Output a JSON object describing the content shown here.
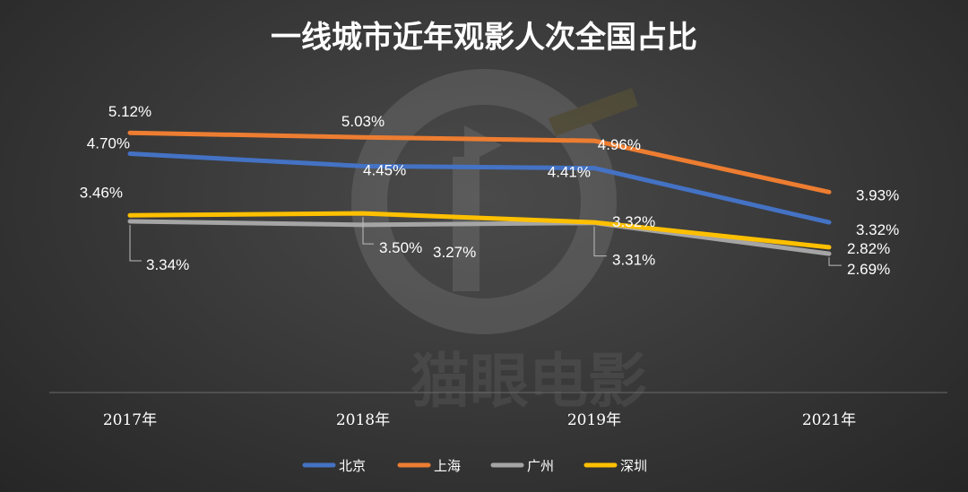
{
  "chart_data": {
    "type": "line",
    "title": "一线城市近年观影人次全国占比",
    "categories": [
      "2017年",
      "2018年",
      "2019年",
      "2021年"
    ],
    "series": [
      {
        "name": "北京",
        "color": "#4472C4",
        "values": [
          4.7,
          4.45,
          4.41,
          3.32
        ],
        "labels": [
          "4.70%",
          "4.45%",
          "4.41%",
          "3.32%"
        ]
      },
      {
        "name": "上海",
        "color": "#ED7D31",
        "values": [
          5.12,
          5.03,
          4.96,
          3.93
        ],
        "labels": [
          "5.12%",
          "5.03%",
          "4.96%",
          "3.93%"
        ]
      },
      {
        "name": "广州",
        "color": "#A5A5A5",
        "values": [
          3.34,
          3.27,
          3.31,
          2.69
        ],
        "labels": [
          "3.34%",
          "3.27%",
          "3.31%",
          "2.69%"
        ]
      },
      {
        "name": "深圳",
        "color": "#FFC000",
        "values": [
          3.46,
          3.5,
          3.32,
          2.82
        ],
        "labels": [
          "3.46%",
          "3.50%",
          "3.32%",
          "2.82%"
        ]
      }
    ],
    "legend_position": "bottom",
    "grid": false
  },
  "watermark": {
    "text": "猫眼电影",
    "icon": "cat-eye-logo"
  }
}
